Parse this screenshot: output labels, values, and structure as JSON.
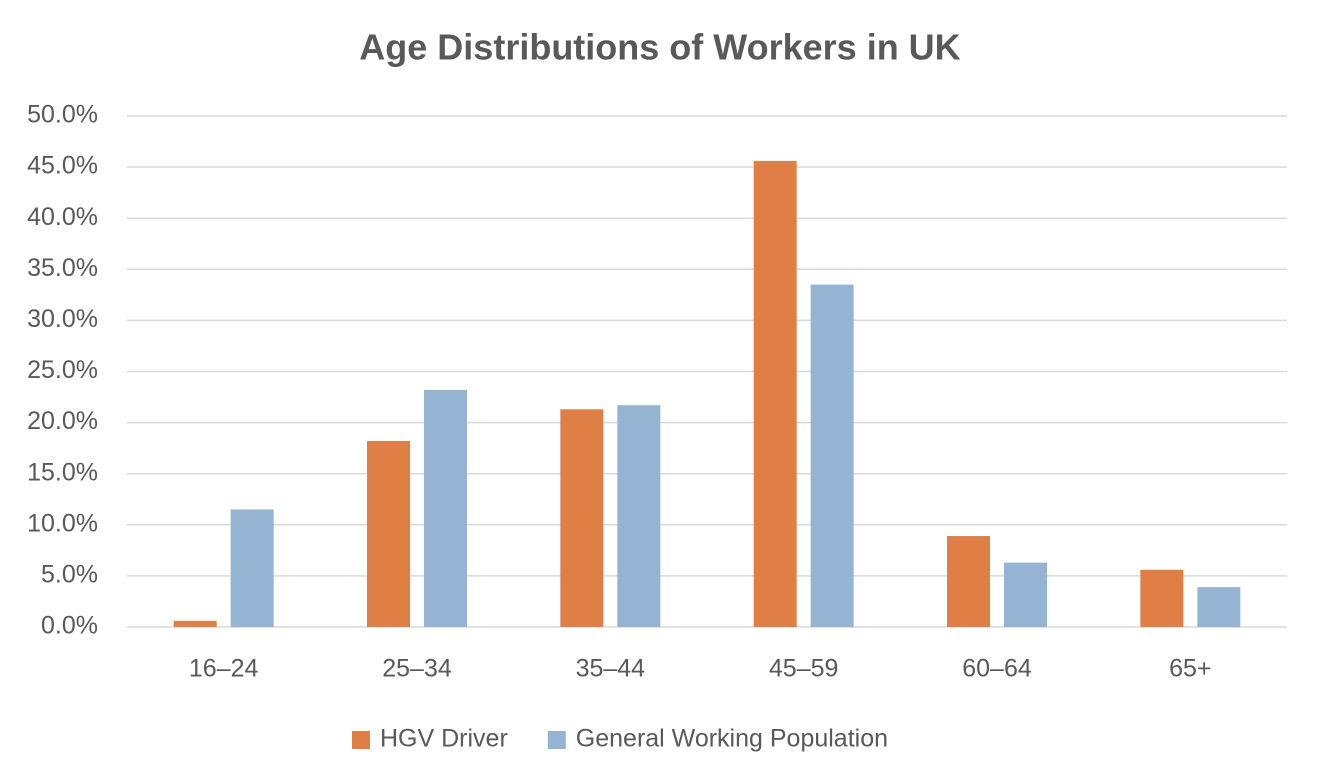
{
  "chart_data": {
    "type": "bar",
    "title": "Age Distributions of Workers in UK",
    "categories": [
      "16–24",
      "25–34",
      "35–44",
      "45–59",
      "60–64",
      "65+"
    ],
    "series": [
      {
        "name": "HGV Driver",
        "color": "#e07f45",
        "values": [
          0.6,
          18.2,
          21.3,
          45.6,
          8.9,
          5.6
        ]
      },
      {
        "name": "General Working Population",
        "color": "#95b3d3",
        "values": [
          11.5,
          23.2,
          21.7,
          33.5,
          6.3,
          3.9
        ]
      }
    ],
    "ylim": [
      0,
      50
    ],
    "yticks": [
      {
        "value": 0,
        "label": "0.0%"
      },
      {
        "value": 5,
        "label": "5.0%"
      },
      {
        "value": 10,
        "label": "10.0%"
      },
      {
        "value": 15,
        "label": "15.0%"
      },
      {
        "value": 20,
        "label": "20.0%"
      },
      {
        "value": 25,
        "label": "25.0%"
      },
      {
        "value": 30,
        "label": "30.0%"
      },
      {
        "value": 35,
        "label": "35.0%"
      },
      {
        "value": 40,
        "label": "40.0%"
      },
      {
        "value": 45,
        "label": "45.0%"
      },
      {
        "value": 50,
        "label": "50.0%"
      }
    ],
    "grid": true,
    "legend": "bottom"
  }
}
